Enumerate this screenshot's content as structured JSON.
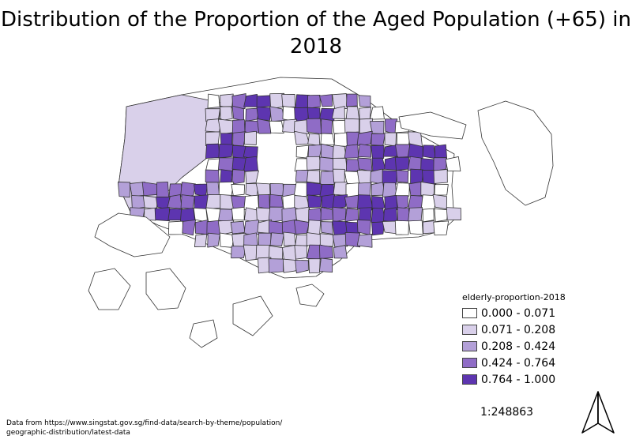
{
  "title_line1": "Distribution of the Proportion of the Aged Population (+65) in",
  "title_line2": "2018",
  "legend": {
    "title": "elderly-proportion-2018",
    "classes": [
      {
        "label": "0.000 - 0.071",
        "color": "#ffffff"
      },
      {
        "label": "0.071 - 0.208",
        "color": "#d9d0ea"
      },
      {
        "label": "0.208 - 0.424",
        "color": "#b3a0d8"
      },
      {
        "label": "0.424 - 0.764",
        "color": "#8f6cc6"
      },
      {
        "label": "0.764 - 1.000",
        "color": "#5d35b0"
      }
    ]
  },
  "source_line1": "Data from https://www.singstat.gov.sg/find-data/search-by-theme/population/",
  "source_line2": "geographic-distribution/latest-data",
  "scale_text": "1:248863",
  "icons": {
    "north_arrow": "north-arrow-icon"
  }
}
